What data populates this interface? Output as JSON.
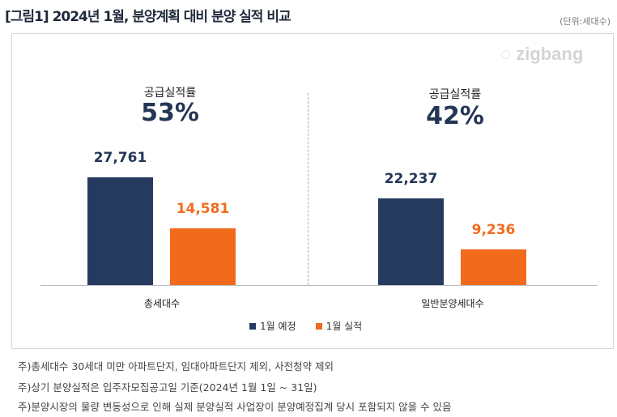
{
  "title": "[그림1] 2024년 1월, 분양계획 대비 분양 실적 비교",
  "unit": "(단위:세대수)",
  "logo": "zigbang",
  "colors": {
    "planned": "#253a5e",
    "actual": "#f26b1d"
  },
  "chart_data": {
    "type": "bar",
    "categories": [
      "총세대수",
      "일반분양세대수"
    ],
    "series": [
      {
        "name": "1월 예정",
        "values": [
          27761,
          22237
        ]
      },
      {
        "name": "1월 실적",
        "values": [
          14581,
          9236
        ]
      }
    ],
    "value_labels": [
      [
        "27,761",
        "22,237"
      ],
      [
        "14,581",
        "9,236"
      ]
    ],
    "ylim": [
      0,
      30000
    ],
    "legend": "bottom",
    "grid": false,
    "annotations": [
      {
        "label": "공급실적률",
        "value": "53%"
      },
      {
        "label": "공급실적률",
        "value": "42%"
      }
    ]
  },
  "notes": [
    "주)총세대수 30세대 미만 아파트단지, 임대아파트단지 제외, 사전청약 제외",
    "주)상기 분양실적은 입주자모집공고일 기준(2024년 1월 1일 ~ 31일)",
    "주)분양시장의 물량 변동성으로 인해 실제 분양실적 사업장이 분양예정집계 당시 포함되지 않을 수 있음"
  ]
}
